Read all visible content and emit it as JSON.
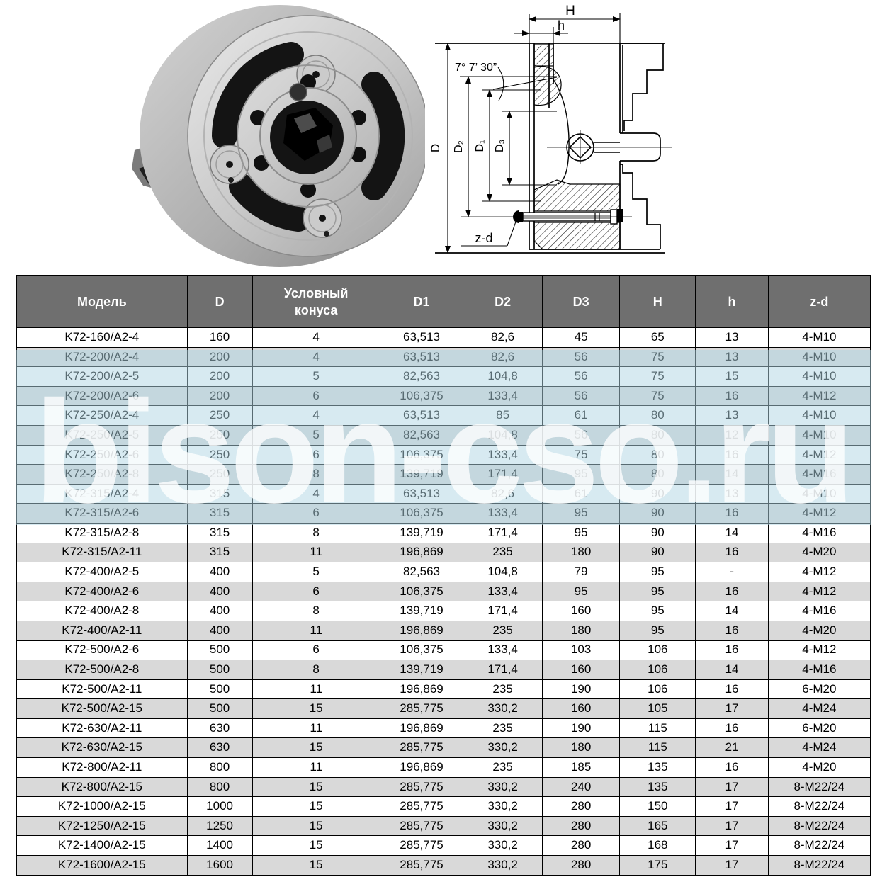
{
  "watermark": {
    "text": "bison-cso.ru"
  },
  "drawing": {
    "labels": {
      "H": "H",
      "h": "h",
      "angle": "7° 7’ 30”",
      "D": "D",
      "D2": "D₂",
      "D1": "D₁",
      "D3": "D₃",
      "zd": "z-d"
    }
  },
  "colors": {
    "header_bg": "#6f6f6f",
    "header_text": "#ffffff",
    "row_alt": "#d9d9d9",
    "grid": "#000000",
    "watermark_band": "rgba(176,214,227,0.5)"
  },
  "table": {
    "headers": [
      "Модель",
      "D",
      "Условный\nконуса",
      "D1",
      "D2",
      "D3",
      "H",
      "h",
      "z-d"
    ],
    "rows": [
      [
        "K72-160/A2-4",
        "160",
        "4",
        "63,513",
        "82,6",
        "45",
        "65",
        "13",
        "4-M10"
      ],
      [
        "K72-200/A2-4",
        "200",
        "4",
        "63,513",
        "82,6",
        "56",
        "75",
        "13",
        "4-M10"
      ],
      [
        "K72-200/A2-5",
        "200",
        "5",
        "82,563",
        "104,8",
        "56",
        "75",
        "15",
        "4-M10"
      ],
      [
        "K72-200/A2-6",
        "200",
        "6",
        "106,375",
        "133,4",
        "56",
        "75",
        "16",
        "4-M12"
      ],
      [
        "K72-250/A2-4",
        "250",
        "4",
        "63,513",
        "85",
        "61",
        "80",
        "13",
        "4-M10"
      ],
      [
        "K72-250/A2-5",
        "250",
        "5",
        "82,563",
        "104,8",
        "56",
        "80",
        "12",
        "4-M10"
      ],
      [
        "K72-250/A2-6",
        "250",
        "6",
        "106,375",
        "133,4",
        "75",
        "80",
        "16",
        "4-M12"
      ],
      [
        "K72-250/A2-8",
        "250",
        "8",
        "139,719",
        "171,4",
        "95",
        "80",
        "14",
        "4-M16"
      ],
      [
        "K72-315/A2-4",
        "315",
        "4",
        "63,513",
        "82,6",
        "61",
        "90",
        "13",
        "4-M10"
      ],
      [
        "K72-315/A2-6",
        "315",
        "6",
        "106,375",
        "133,4",
        "95",
        "90",
        "16",
        "4-M12"
      ],
      [
        "K72-315/A2-8",
        "315",
        "8",
        "139,719",
        "171,4",
        "95",
        "90",
        "14",
        "4-M16"
      ],
      [
        "K72-315/A2-11",
        "315",
        "11",
        "196,869",
        "235",
        "180",
        "90",
        "16",
        "4-M20"
      ],
      [
        "K72-400/A2-5",
        "400",
        "5",
        "82,563",
        "104,8",
        "79",
        "95",
        "-",
        "4-M12"
      ],
      [
        "K72-400/A2-6",
        "400",
        "6",
        "106,375",
        "133,4",
        "95",
        "95",
        "16",
        "4-M12"
      ],
      [
        "K72-400/A2-8",
        "400",
        "8",
        "139,719",
        "171,4",
        "160",
        "95",
        "14",
        "4-M16"
      ],
      [
        "K72-400/A2-11",
        "400",
        "11",
        "196,869",
        "235",
        "180",
        "95",
        "16",
        "4-M20"
      ],
      [
        "K72-500/A2-6",
        "500",
        "6",
        "106,375",
        "133,4",
        "103",
        "106",
        "16",
        "4-M12"
      ],
      [
        "K72-500/A2-8",
        "500",
        "8",
        "139,719",
        "171,4",
        "160",
        "106",
        "14",
        "4-M16"
      ],
      [
        "K72-500/A2-11",
        "500",
        "11",
        "196,869",
        "235",
        "190",
        "106",
        "16",
        "6-M20"
      ],
      [
        "K72-500/A2-15",
        "500",
        "15",
        "285,775",
        "330,2",
        "160",
        "105",
        "17",
        "4-M24"
      ],
      [
        "K72-630/A2-11",
        "630",
        "11",
        "196,869",
        "235",
        "190",
        "115",
        "16",
        "6-M20"
      ],
      [
        "K72-630/A2-15",
        "630",
        "15",
        "285,775",
        "330,2",
        "180",
        "115",
        "21",
        "4-M24"
      ],
      [
        "K72-800/A2-11",
        "800",
        "11",
        "196,869",
        "235",
        "185",
        "135",
        "16",
        "4-M20"
      ],
      [
        "K72-800/A2-15",
        "800",
        "15",
        "285,775",
        "330,2",
        "240",
        "135",
        "17",
        "8-M22/24"
      ],
      [
        "K72-1000/A2-15",
        "1000",
        "15",
        "285,775",
        "330,2",
        "280",
        "150",
        "17",
        "8-M22/24"
      ],
      [
        "K72-1250/A2-15",
        "1250",
        "15",
        "285,775",
        "330,2",
        "280",
        "165",
        "17",
        "8-M22/24"
      ],
      [
        "K72-1400/A2-15",
        "1400",
        "15",
        "285,775",
        "330,2",
        "280",
        "168",
        "17",
        "8-M22/24"
      ],
      [
        "K72-1600/A2-15",
        "1600",
        "15",
        "285,775",
        "330,2",
        "280",
        "175",
        "17",
        "8-M22/24"
      ]
    ]
  }
}
